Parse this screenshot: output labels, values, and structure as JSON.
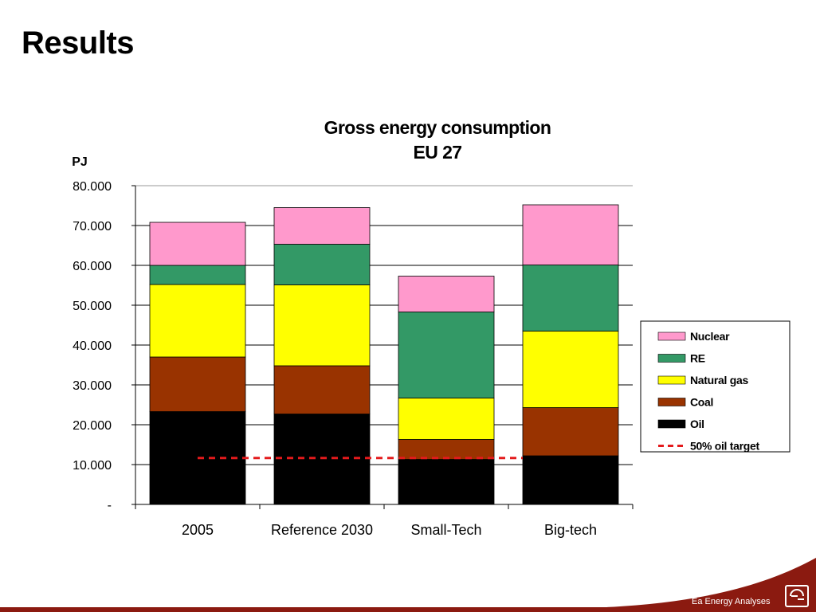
{
  "page": {
    "title": "Results",
    "footer_text": "Ea Energy Analyses"
  },
  "colors": {
    "Nuclear": "#ff99cc",
    "RE": "#339966",
    "Natural gas": "#ffff00",
    "Coal": "#993300",
    "Oil": "#000000",
    "target": "#e41a1c",
    "footer": "#8b1a10"
  },
  "chart_data": {
    "type": "bar",
    "stacked": true,
    "title": "Gross energy consumption",
    "subtitle": "EU 27",
    "ylabel": "PJ",
    "xlabel": "",
    "ylim": [
      0,
      80000
    ],
    "yticks": [
      0,
      10000,
      20000,
      30000,
      40000,
      50000,
      60000,
      70000,
      80000
    ],
    "ytick_labels": [
      "-",
      "10.000",
      "20.000",
      "30.000",
      "40.000",
      "50.000",
      "60.000",
      "70.000",
      "80.000"
    ],
    "grid": true,
    "legend_position": "right",
    "categories": [
      "2005",
      "Reference 2030",
      "Small-Tech",
      "Big-tech"
    ],
    "series": [
      {
        "name": "Oil",
        "values": [
          23300,
          22700,
          11300,
          12200
        ]
      },
      {
        "name": "Coal",
        "values": [
          13700,
          12100,
          5000,
          12100
        ]
      },
      {
        "name": "Natural gas",
        "values": [
          18200,
          20300,
          10400,
          19200
        ]
      },
      {
        "name": "RE",
        "values": [
          4800,
          10200,
          21600,
          16600
        ]
      },
      {
        "name": "Nuclear",
        "values": [
          10800,
          9200,
          9000,
          15100
        ]
      }
    ],
    "legend_order": [
      "Nuclear",
      "RE",
      "Natural gas",
      "Coal",
      "Oil"
    ],
    "reference_line": {
      "name": "50% oil target",
      "value": 11650
    }
  }
}
